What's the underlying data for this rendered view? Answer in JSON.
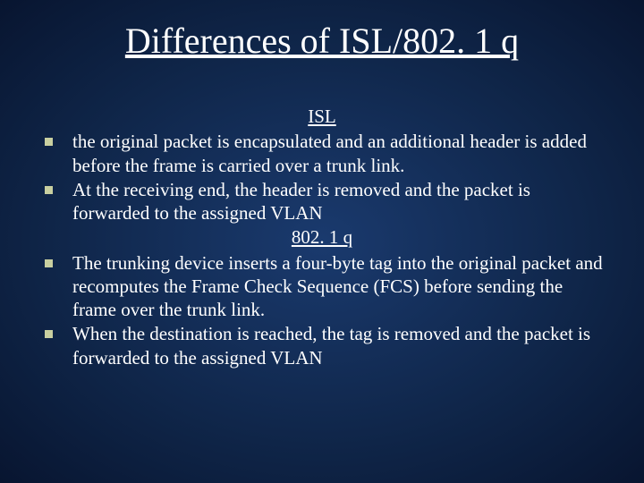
{
  "slide": {
    "title": "Differences of ISL/802. 1 q",
    "background_gradient": {
      "center": "#1a3a6e",
      "mid": "#0f2548",
      "edge": "#081530"
    },
    "title_color": "#ffffff",
    "title_fontsize": 40,
    "text_color": "#ffffff",
    "body_fontsize": 21,
    "bullet_marker_color": "#c8cfa0",
    "bullet_marker_size": 9,
    "subheadings": [
      {
        "label": "ISL"
      },
      {
        "label": "802. 1 q"
      }
    ],
    "bullets": [
      "the original packet is encapsulated and an additional header is added before the frame is carried over a trunk link.",
      "At the receiving end, the header is removed and the packet is forwarded to the assigned VLAN",
      "The trunking device inserts a four-byte tag into the original packet and recomputes the Frame Check Sequence (FCS) before sending the frame over the trunk link.",
      "When the destination is reached, the tag is removed and the packet is forwarded to the assigned VLAN"
    ]
  }
}
